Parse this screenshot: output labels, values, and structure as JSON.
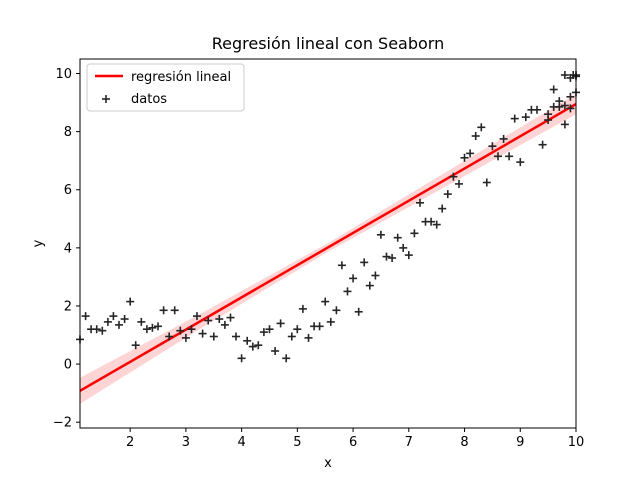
{
  "chart_data": {
    "type": "scatter",
    "title": "Regresión lineal con Seaborn",
    "xlabel": "x",
    "ylabel": "y",
    "xlim": [
      1.1,
      10.0
    ],
    "ylim": [
      -2.2,
      10.5
    ],
    "xticks": [
      2,
      3,
      4,
      5,
      6,
      7,
      8,
      9,
      10
    ],
    "yticks": [
      -2,
      0,
      2,
      4,
      6,
      8,
      10
    ],
    "grid": false,
    "legend": "top-left",
    "regression": {
      "name": "regresión lineal",
      "color": "#ff0000",
      "band_color": "#ffcccc",
      "x": [
        1.1,
        10.0
      ],
      "y": [
        -0.92,
        8.95
      ],
      "band_halfwidth": [
        0.45,
        0.25,
        0.15,
        0.25,
        0.35
      ]
    },
    "scatter": {
      "name": "datos",
      "color": "#262626",
      "points": [
        [
          1.1,
          0.85
        ],
        [
          1.2,
          1.65
        ],
        [
          1.3,
          1.2
        ],
        [
          1.4,
          1.2
        ],
        [
          1.5,
          1.15
        ],
        [
          1.6,
          1.45
        ],
        [
          1.7,
          1.65
        ],
        [
          1.8,
          1.35
        ],
        [
          1.9,
          1.55
        ],
        [
          2.0,
          2.15
        ],
        [
          2.1,
          0.65
        ],
        [
          2.2,
          1.45
        ],
        [
          2.3,
          1.2
        ],
        [
          2.4,
          1.25
        ],
        [
          2.5,
          1.3
        ],
        [
          2.6,
          1.85
        ],
        [
          2.7,
          0.95
        ],
        [
          2.8,
          1.85
        ],
        [
          2.9,
          1.15
        ],
        [
          3.0,
          0.9
        ],
        [
          3.1,
          1.2
        ],
        [
          3.2,
          1.65
        ],
        [
          3.3,
          1.05
        ],
        [
          3.4,
          1.5
        ],
        [
          3.5,
          0.95
        ],
        [
          3.6,
          1.55
        ],
        [
          3.7,
          1.35
        ],
        [
          3.8,
          1.6
        ],
        [
          3.9,
          0.95
        ],
        [
          4.0,
          0.2
        ],
        [
          4.1,
          0.8
        ],
        [
          4.2,
          0.6
        ],
        [
          4.3,
          0.65
        ],
        [
          4.4,
          1.1
        ],
        [
          4.5,
          1.2
        ],
        [
          4.6,
          0.45
        ],
        [
          4.7,
          1.4
        ],
        [
          4.8,
          0.2
        ],
        [
          4.9,
          0.95
        ],
        [
          5.0,
          1.2
        ],
        [
          5.1,
          1.9
        ],
        [
          5.2,
          0.9
        ],
        [
          5.3,
          1.3
        ],
        [
          5.4,
          1.3
        ],
        [
          5.5,
          2.15
        ],
        [
          5.6,
          1.45
        ],
        [
          5.7,
          1.85
        ],
        [
          5.8,
          3.4
        ],
        [
          5.9,
          2.5
        ],
        [
          6.0,
          2.95
        ],
        [
          6.1,
          1.8
        ],
        [
          6.2,
          3.5
        ],
        [
          6.3,
          2.7
        ],
        [
          6.4,
          3.05
        ],
        [
          6.5,
          4.45
        ],
        [
          6.6,
          3.7
        ],
        [
          6.7,
          3.65
        ],
        [
          6.8,
          4.35
        ],
        [
          6.9,
          4.0
        ],
        [
          7.0,
          3.75
        ],
        [
          7.1,
          4.5
        ],
        [
          7.2,
          5.55
        ],
        [
          7.3,
          4.9
        ],
        [
          7.4,
          4.9
        ],
        [
          7.5,
          4.8
        ],
        [
          7.6,
          5.35
        ],
        [
          7.7,
          5.85
        ],
        [
          7.8,
          6.45
        ],
        [
          7.9,
          6.2
        ],
        [
          8.0,
          7.1
        ],
        [
          8.1,
          7.25
        ],
        [
          8.2,
          7.85
        ],
        [
          8.3,
          8.15
        ],
        [
          8.4,
          6.25
        ],
        [
          8.5,
          7.5
        ],
        [
          8.6,
          7.15
        ],
        [
          8.7,
          7.75
        ],
        [
          8.8,
          7.15
        ],
        [
          8.9,
          8.45
        ],
        [
          9.0,
          6.95
        ],
        [
          9.1,
          8.5
        ],
        [
          9.2,
          8.75
        ],
        [
          9.3,
          8.75
        ],
        [
          9.4,
          7.55
        ],
        [
          9.5,
          8.4
        ],
        [
          9.6,
          8.85
        ],
        [
          9.7,
          8.85
        ],
        [
          9.8,
          8.25
        ],
        [
          9.9,
          8.8
        ],
        [
          10.0,
          9.35
        ],
        [
          9.5,
          8.6
        ],
        [
          9.6,
          9.45
        ],
        [
          9.7,
          9.05
        ],
        [
          9.8,
          8.9
        ],
        [
          9.9,
          9.2
        ],
        [
          10.0,
          9.95
        ],
        [
          9.8,
          9.95
        ],
        [
          9.9,
          9.85
        ],
        [
          10.0,
          9.9
        ],
        [
          9.95,
          9.95
        ]
      ]
    }
  }
}
